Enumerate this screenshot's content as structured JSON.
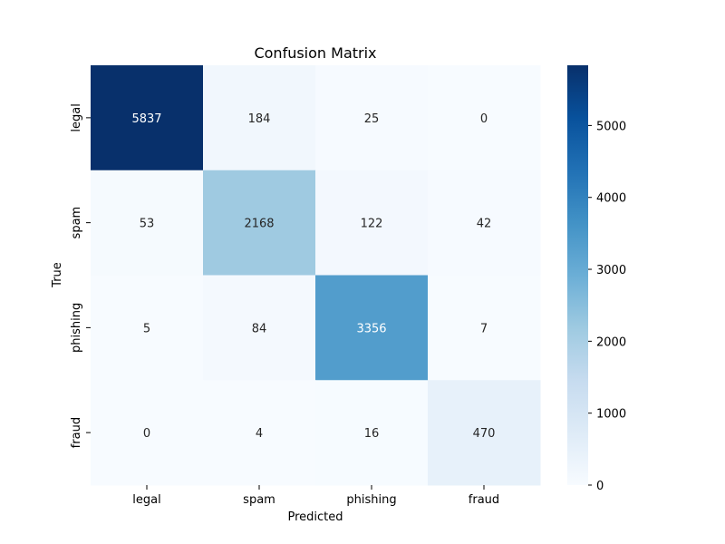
{
  "chart_data": {
    "type": "heatmap",
    "title": "Confusion Matrix",
    "xlabel": "Predicted",
    "ylabel": "True",
    "x_categories": [
      "legal",
      "spam",
      "phishing",
      "fraud"
    ],
    "y_categories": [
      "legal",
      "spam",
      "phishing",
      "fraud"
    ],
    "values": [
      [
        5837,
        184,
        25,
        0
      ],
      [
        53,
        2168,
        122,
        42
      ],
      [
        5,
        84,
        3356,
        7
      ],
      [
        0,
        4,
        16,
        470
      ]
    ],
    "colormap": "Blues",
    "value_range": [
      0,
      5837
    ],
    "colorbar": {
      "ticks": [
        0,
        1000,
        2000,
        3000,
        4000,
        5000
      ],
      "tick_labels": [
        "0",
        "1000",
        "2000",
        "3000",
        "4000",
        "5000"
      ]
    },
    "annotations": true
  }
}
